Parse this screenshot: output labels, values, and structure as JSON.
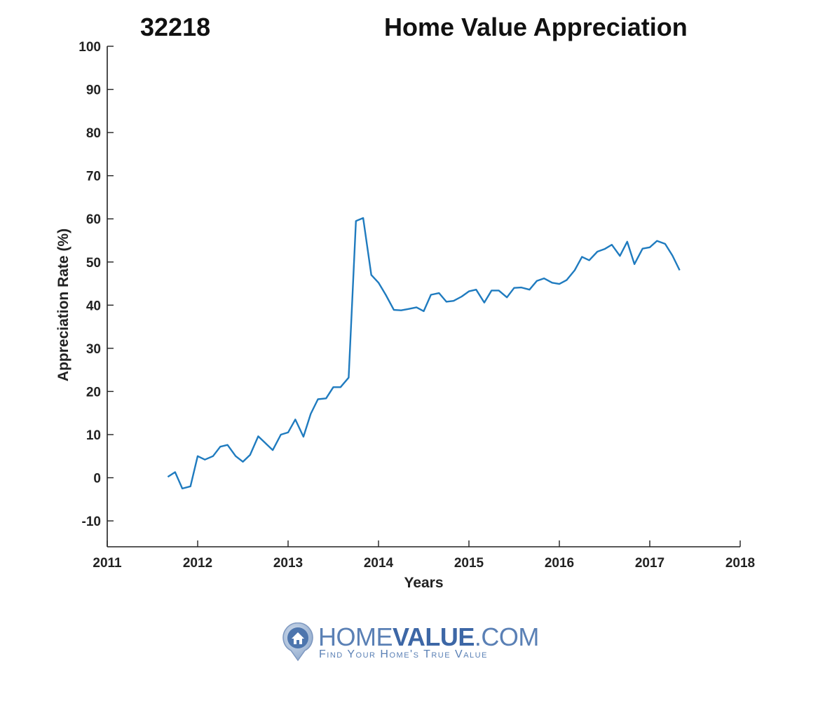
{
  "header": {
    "zip": "32218",
    "title": "Home Value Appreciation"
  },
  "chart_data": {
    "type": "line",
    "title": "Home Value Appreciation",
    "xlabel": "Years",
    "ylabel": "Appreciation Rate (%)",
    "xlim": [
      2011,
      2018
    ],
    "ylim": [
      -16,
      100
    ],
    "xticks": [
      2011,
      2012,
      2013,
      2014,
      2015,
      2016,
      2017,
      2018
    ],
    "yticks": [
      -10,
      0,
      10,
      20,
      30,
      40,
      50,
      60,
      70,
      80,
      90,
      100
    ],
    "grid": false,
    "line_color": "#1f7bbf",
    "series": [
      {
        "x": [
          2011.67,
          2011.75,
          2011.83,
          2011.92,
          2012.0,
          2012.08,
          2012.17,
          2012.25,
          2012.33,
          2012.42,
          2012.5,
          2012.58,
          2012.67,
          2012.75,
          2012.83,
          2012.92,
          2013.0,
          2013.08,
          2013.17,
          2013.25,
          2013.33,
          2013.42,
          2013.5,
          2013.58,
          2013.67,
          2013.75,
          2013.83,
          2013.92,
          2014.0,
          2014.08,
          2014.17,
          2014.25,
          2014.33,
          2014.42,
          2014.5,
          2014.58,
          2014.67,
          2014.75,
          2014.83,
          2014.92,
          2015.0,
          2015.08,
          2015.17,
          2015.25,
          2015.33,
          2015.42,
          2015.5,
          2015.58,
          2015.67,
          2015.75,
          2015.83,
          2015.92,
          2016.0,
          2016.08,
          2016.17,
          2016.25,
          2016.33,
          2016.42,
          2016.5,
          2016.58,
          2016.67,
          2016.75,
          2016.83,
          2016.92,
          2017.0,
          2017.08,
          2017.17,
          2017.25,
          2017.33
        ],
        "values": [
          0.2,
          1.3,
          -2.5,
          -2.0,
          5.0,
          4.2,
          5.0,
          7.2,
          7.6,
          5.0,
          3.7,
          5.3,
          9.6,
          8.0,
          6.4,
          10.0,
          10.5,
          13.5,
          9.5,
          14.8,
          18.2,
          18.4,
          21.0,
          21.0,
          23.2,
          59.5,
          60.2,
          47.0,
          45.2,
          42.4,
          38.9,
          38.8,
          39.1,
          39.5,
          38.6,
          42.4,
          42.8,
          40.8,
          41.0,
          42.0,
          43.2,
          43.6,
          40.6,
          43.4,
          43.4,
          41.8,
          44.0,
          44.1,
          43.6,
          45.6,
          46.2,
          45.2,
          44.9,
          45.8,
          48.1,
          51.2,
          50.4,
          52.4,
          53.0,
          54.0,
          51.4,
          54.7,
          49.5,
          53.1,
          53.4,
          54.9,
          54.2,
          51.5,
          48.1
        ]
      }
    ]
  },
  "logo": {
    "name_light_1": "HOME",
    "name_bold": "VALUE",
    "name_light_2": ".COM",
    "tagline": "Find Your Home's True Value"
  }
}
